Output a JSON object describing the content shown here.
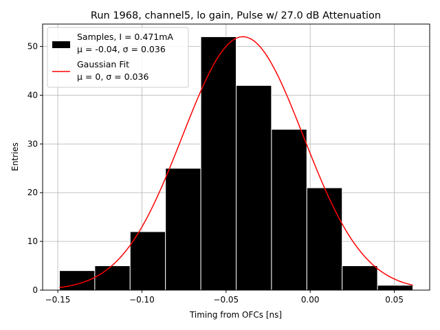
{
  "chart_data": {
    "type": "bar",
    "title": "Run 1968, channel5, lo gain, Pulse w/ 27.0 dB Attenuation",
    "xlabel": "Timing from OFCs [ns]",
    "ylabel": "Entries",
    "xlim": [
      -0.159,
      0.071
    ],
    "ylim": [
      0,
      54.6
    ],
    "grid": true,
    "x_ticks": [
      -0.15,
      -0.1,
      -0.05,
      0.0,
      0.05
    ],
    "x_tick_labels": [
      "−0.15",
      "−0.10",
      "−0.05",
      "0.00",
      "0.05"
    ],
    "y_ticks": [
      0,
      10,
      20,
      30,
      40,
      50
    ],
    "y_tick_labels": [
      "0",
      "10",
      "20",
      "30",
      "40",
      "50"
    ],
    "bin_edges": [
      -0.149,
      -0.128,
      -0.107,
      -0.086,
      -0.065,
      -0.044,
      -0.023,
      -0.002,
      0.019,
      0.04,
      0.061
    ],
    "values": [
      4,
      5,
      12,
      25,
      52,
      42,
      33,
      21,
      5,
      1
    ],
    "fit": {
      "type": "gaussian",
      "amplitude": 52,
      "mean": -0.04,
      "sigma": 0.036,
      "x_range": [
        -0.149,
        0.061
      ],
      "color": "#ff0000"
    },
    "bar_color": "#000000",
    "legend": {
      "position": "top-left",
      "entries": [
        {
          "label_line1": "Samples, I = 0.471mA",
          "label_line2": "μ = -0.04, σ = 0.036",
          "kind": "bar"
        },
        {
          "label_line1": "Gaussian Fit",
          "label_line2": "μ = 0, σ = 0.036",
          "kind": "line"
        }
      ]
    }
  }
}
